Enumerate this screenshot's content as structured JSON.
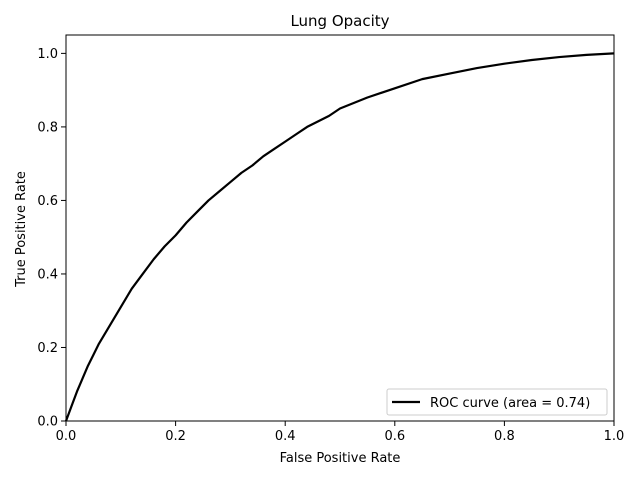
{
  "chart_data": {
    "type": "line",
    "title": "Lung Opacity",
    "xlabel": "False Positive Rate",
    "ylabel": "True Positive Rate",
    "xlim": [
      0.0,
      1.0
    ],
    "ylim": [
      0.0,
      1.05
    ],
    "xticks": [
      0.0,
      0.2,
      0.4,
      0.6,
      0.8,
      1.0
    ],
    "yticks": [
      0.0,
      0.2,
      0.4,
      0.6,
      0.8,
      1.0
    ],
    "xtick_labels": [
      "0.0",
      "0.2",
      "0.4",
      "0.6",
      "0.8",
      "1.0"
    ],
    "ytick_labels": [
      "0.0",
      "0.2",
      "0.4",
      "0.6",
      "0.8",
      "1.0"
    ],
    "grid": false,
    "legend": {
      "placement": "lower-right",
      "entries": [
        "ROC curve (area = 0.74)"
      ]
    },
    "series": [
      {
        "name": "ROC curve (area = 0.74)",
        "color": "#000000",
        "x": [
          0.0,
          0.01,
          0.02,
          0.03,
          0.04,
          0.05,
          0.06,
          0.08,
          0.1,
          0.12,
          0.14,
          0.16,
          0.18,
          0.2,
          0.22,
          0.24,
          0.26,
          0.28,
          0.3,
          0.32,
          0.34,
          0.36,
          0.38,
          0.4,
          0.42,
          0.44,
          0.46,
          0.48,
          0.5,
          0.55,
          0.6,
          0.65,
          0.7,
          0.75,
          0.8,
          0.85,
          0.9,
          0.95,
          1.0
        ],
        "y": [
          0.0,
          0.04,
          0.08,
          0.115,
          0.15,
          0.18,
          0.21,
          0.26,
          0.31,
          0.36,
          0.4,
          0.44,
          0.475,
          0.505,
          0.54,
          0.57,
          0.6,
          0.625,
          0.65,
          0.675,
          0.695,
          0.72,
          0.74,
          0.76,
          0.78,
          0.8,
          0.815,
          0.83,
          0.85,
          0.88,
          0.905,
          0.93,
          0.945,
          0.96,
          0.972,
          0.982,
          0.99,
          0.996,
          1.0
        ]
      }
    ]
  }
}
